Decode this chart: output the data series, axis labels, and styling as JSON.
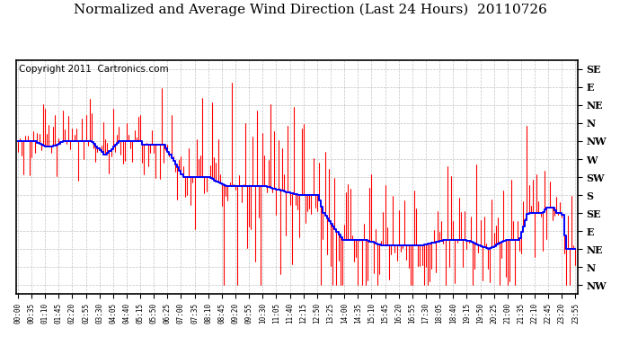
{
  "title": "Normalized and Average Wind Direction (Last 24 Hours)  20110726",
  "copyright": "Copyright 2011  Cartronics.com",
  "ytick_labels": [
    "SE",
    "E",
    "NE",
    "N",
    "NW",
    "W",
    "SW",
    "S",
    "SE",
    "E",
    "NE",
    "N",
    "NW"
  ],
  "ytick_values": [
    0,
    1,
    2,
    3,
    4,
    5,
    6,
    7,
    8,
    9,
    10,
    11,
    12
  ],
  "ylim": [
    12.5,
    -0.5
  ],
  "bg_color": "#ffffff",
  "plot_bg": "#ffffff",
  "border_color": "#000000",
  "grid_color": "#aaaaaa",
  "red_color": "#ff0000",
  "blue_color": "#0000ff",
  "title_fontsize": 11,
  "copyright_fontsize": 7.5,
  "n_points": 288,
  "xtick_step": 7
}
